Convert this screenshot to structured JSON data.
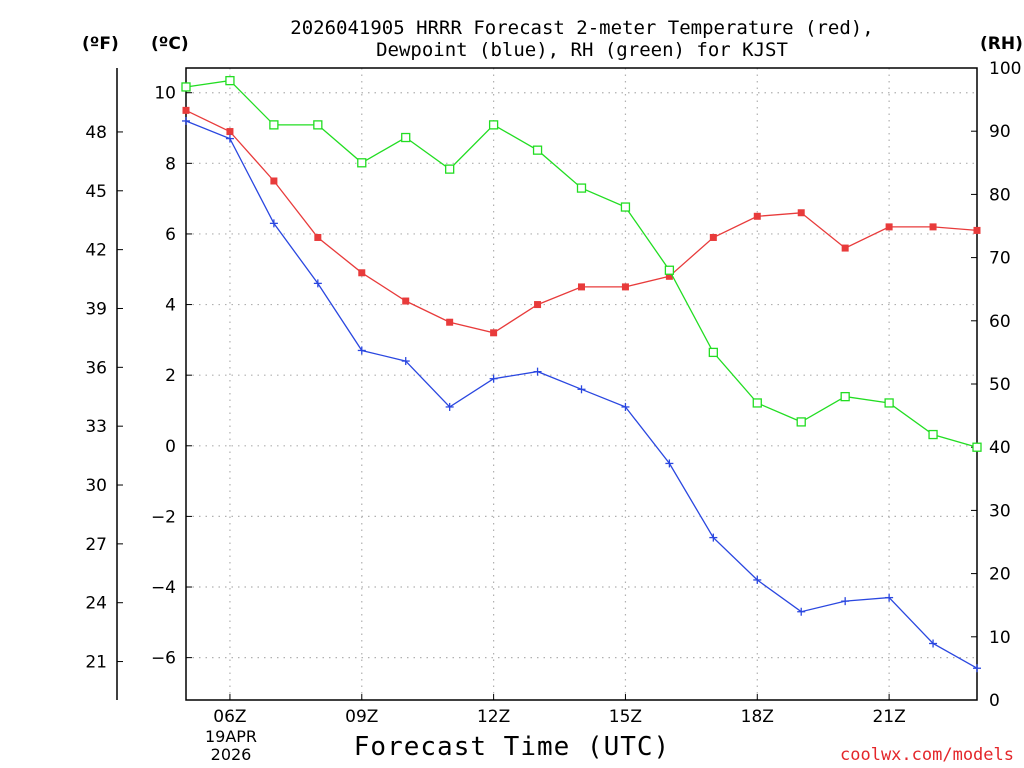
{
  "chart_data": {
    "type": "line",
    "title_line1": "2026041905 HRRR Forecast 2-meter Temperature (red),",
    "title_line2": "Dewpoint (blue), RH (green) for KJST",
    "xlabel": "Forecast Time (UTC)",
    "units": {
      "fahrenheit": "(ºF)",
      "celsius": "(ºC)",
      "rh": "(RH)"
    },
    "date_label": [
      "19APR",
      "2026"
    ],
    "credit": "coolwx.com/models",
    "x_hours": [
      5,
      6,
      7,
      8,
      9,
      10,
      11,
      12,
      13,
      14,
      15,
      16,
      17,
      18,
      19,
      20,
      21,
      22,
      23
    ],
    "x_tick_labels": [
      "06Z",
      "09Z",
      "12Z",
      "15Z",
      "18Z",
      "21Z"
    ],
    "x_tick_hours": [
      6,
      9,
      12,
      15,
      18,
      21
    ],
    "x_range": [
      5,
      23
    ],
    "celsius_ticks": [
      "10",
      "8",
      "6",
      "4",
      "2",
      "0",
      "−2",
      "−4",
      "−6"
    ],
    "celsius_tick_values": [
      10,
      8,
      6,
      4,
      2,
      0,
      -2,
      -4,
      -6
    ],
    "celsius_range": [
      -7.2,
      10.7
    ],
    "fahrenheit_ticks": [
      "48",
      "45",
      "42",
      "39",
      "36",
      "33",
      "30",
      "27",
      "24",
      "21"
    ],
    "fahrenheit_tick_values": [
      48,
      45,
      42,
      39,
      36,
      33,
      30,
      27,
      24,
      21
    ],
    "rh_ticks": [
      "100",
      "90",
      "80",
      "70",
      "60",
      "50",
      "40",
      "30",
      "20",
      "10",
      "0"
    ],
    "rh_tick_values": [
      100,
      90,
      80,
      70,
      60,
      50,
      40,
      30,
      20,
      10,
      0
    ],
    "rh_range": [
      0,
      100
    ],
    "series": [
      {
        "name": "Temperature",
        "axis": "celsius",
        "color": "#e83b3b",
        "marker": "filled-square",
        "values": [
          9.5,
          8.9,
          7.5,
          5.9,
          4.9,
          4.1,
          3.5,
          3.2,
          4.0,
          4.5,
          4.5,
          4.8,
          5.9,
          6.5,
          6.6,
          5.6,
          6.2,
          6.2,
          6.1
        ]
      },
      {
        "name": "Dewpoint",
        "axis": "celsius",
        "color": "#2a47e0",
        "marker": "plus",
        "values": [
          9.2,
          8.7,
          6.3,
          4.6,
          2.7,
          2.4,
          1.1,
          1.9,
          2.1,
          1.6,
          1.1,
          -0.5,
          -2.6,
          -3.8,
          -4.7,
          -4.4,
          -4.3,
          -5.6,
          -6.3
        ]
      },
      {
        "name": "RH",
        "axis": "rh",
        "color": "#22dd22",
        "marker": "open-square",
        "values": [
          97,
          98,
          91,
          91,
          85,
          89,
          84,
          91,
          87,
          81,
          78,
          68,
          55,
          47,
          44,
          48,
          47,
          42,
          40
        ]
      }
    ]
  }
}
